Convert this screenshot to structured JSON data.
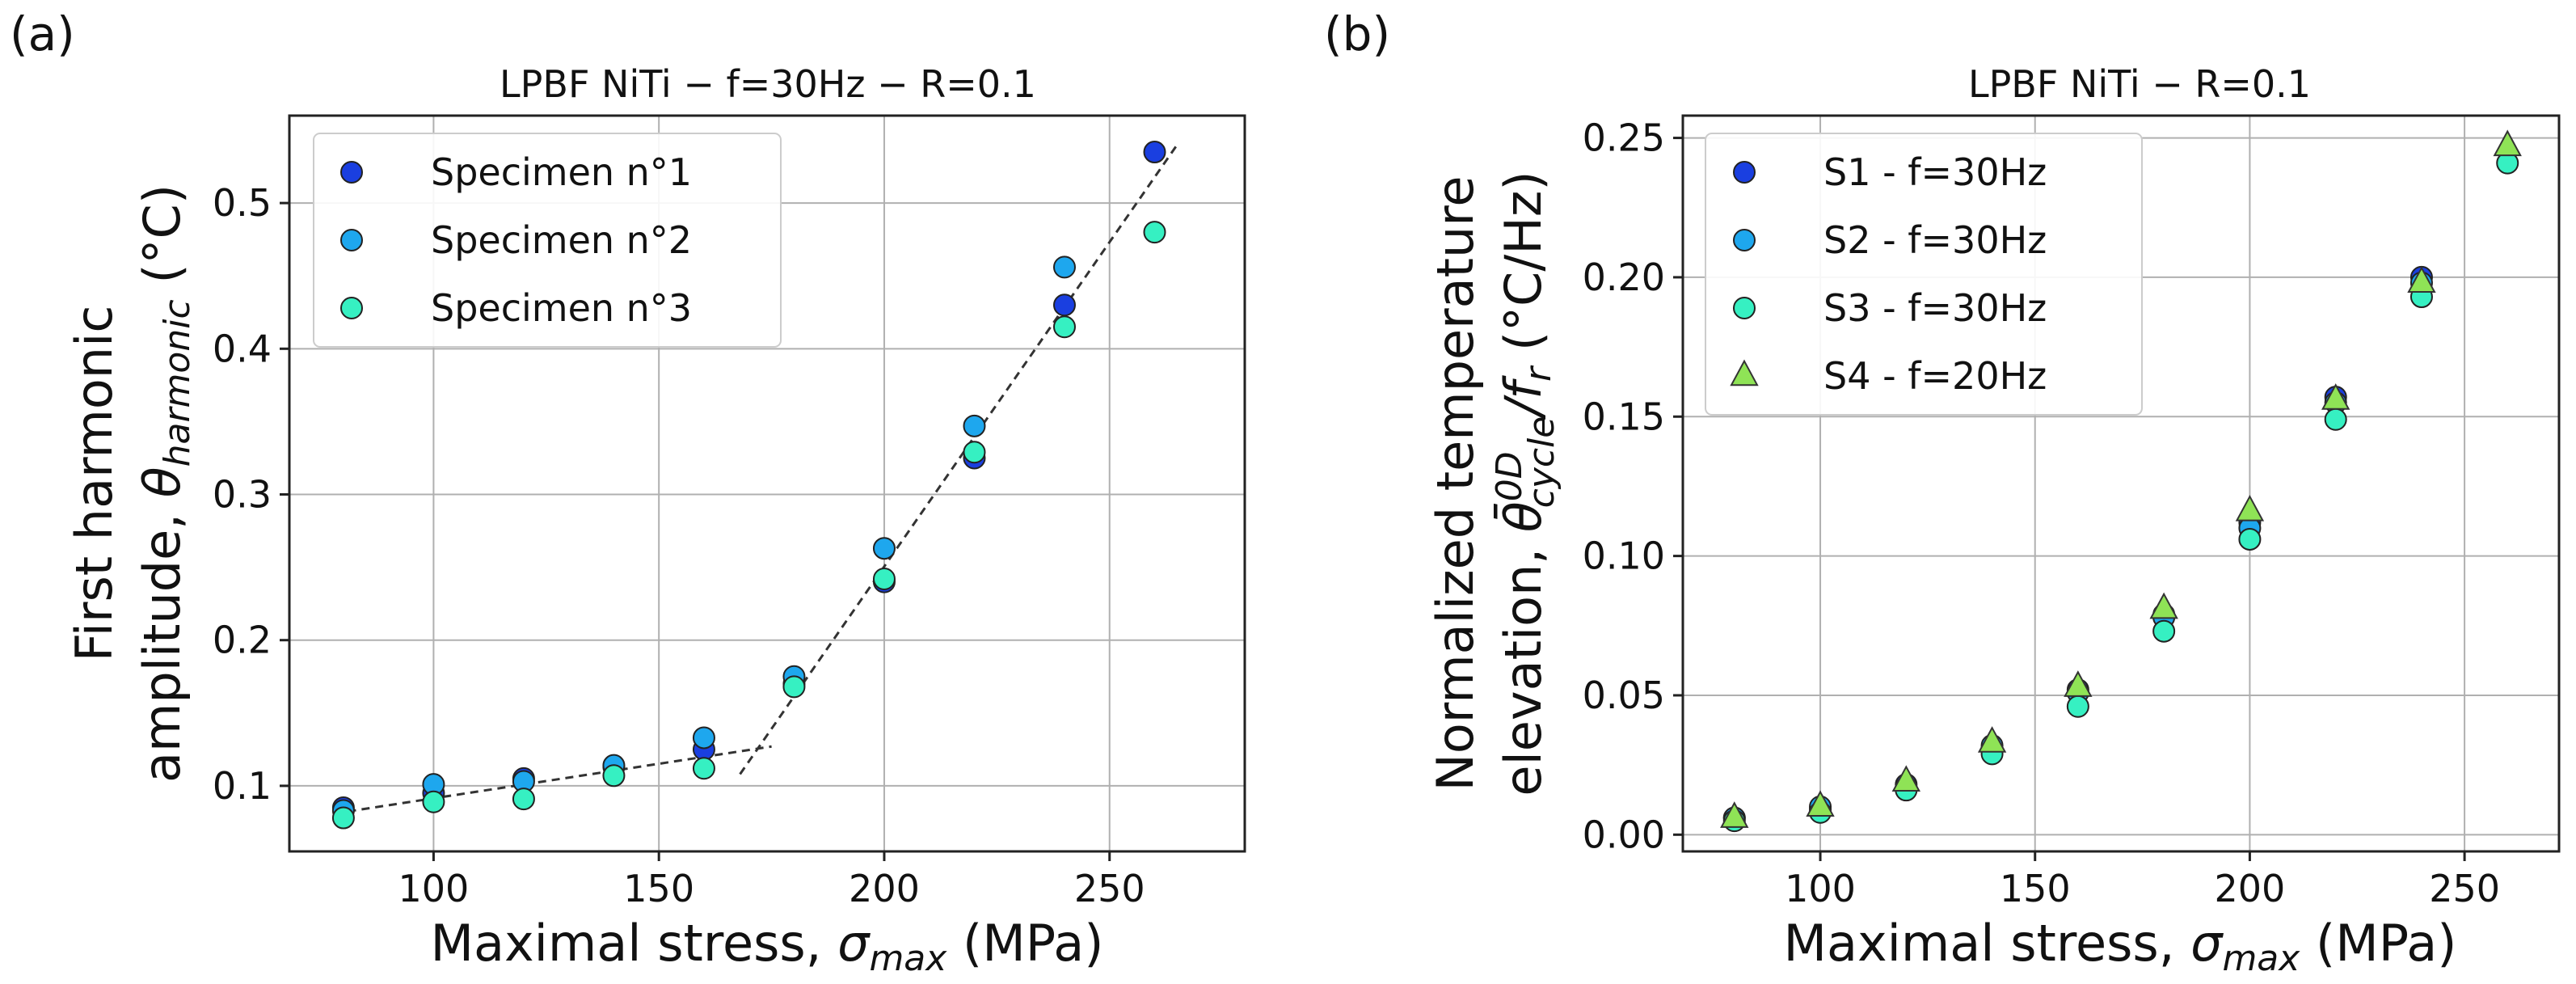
{
  "chart_data": [
    {
      "type": "scatter",
      "panel_label": "(a)",
      "title": "LPBF NiTi − f=30Hz − R=0.1",
      "xlabel": {
        "prefix": "Maximal stress, ",
        "symbol": "σ",
        "sub": "max",
        "suffix": " (MPa)"
      },
      "ylabel": {
        "line1": "First harmonic",
        "line2": {
          "prefix": "amplitude, ",
          "symbol": "θ",
          "sub": "harmonic",
          "suffix": "  (°C)"
        }
      },
      "xlim": [
        68,
        280
      ],
      "ylim": [
        0.055,
        0.56
      ],
      "xticks": [
        100,
        150,
        200,
        250
      ],
      "yticks": [
        0.1,
        0.2,
        0.3,
        0.4,
        0.5
      ],
      "ytick_labels": [
        "0.1",
        "0.2",
        "0.3",
        "0.4",
        "0.5"
      ],
      "grid": true,
      "legend_position": "top-left",
      "series": [
        {
          "name": "Specimen n°1",
          "color": "#1a3fe0",
          "marker": "circle",
          "x": [
            80,
            100,
            120,
            140,
            160,
            180,
            200,
            220,
            240,
            260
          ],
          "y": [
            0.085,
            0.095,
            0.105,
            0.113,
            0.125,
            0.17,
            0.24,
            0.325,
            0.43,
            0.535
          ]
        },
        {
          "name": "Specimen n°2",
          "color": "#1ea7ee",
          "marker": "circle",
          "x": [
            80,
            100,
            120,
            140,
            160,
            180,
            200,
            220,
            240
          ],
          "y": [
            0.083,
            0.101,
            0.103,
            0.114,
            0.133,
            0.175,
            0.263,
            0.347,
            0.456
          ]
        },
        {
          "name": "Specimen n°3",
          "color": "#36f0c2",
          "marker": "circle",
          "x": [
            80,
            100,
            120,
            140,
            160,
            180,
            200,
            220,
            240,
            260
          ],
          "y": [
            0.078,
            0.089,
            0.091,
            0.107,
            0.112,
            0.168,
            0.242,
            0.329,
            0.415,
            0.48
          ]
        }
      ],
      "fit_lines": [
        {
          "x": [
            78,
            175
          ],
          "y": [
            0.081,
            0.127
          ]
        },
        {
          "x": [
            168,
            265
          ],
          "y": [
            0.108,
            0.54
          ]
        }
      ]
    },
    {
      "type": "scatter",
      "panel_label": "(b)",
      "title": "LPBF NiTi − R=0.1",
      "xlabel": {
        "prefix": "Maximal stress, ",
        "symbol": "σ",
        "sub": "max",
        "suffix": " (MPa)"
      },
      "ylabel": {
        "line1": "Normalized temperature",
        "line2": {
          "prefix": "elevation, ",
          "symbol": "θ̄",
          "sup": "0D",
          "sub": "cycle",
          "suffix_mid": "/f",
          "suffix_sub": "r",
          "suffix": "  (°C/Hz)"
        }
      },
      "xlim": [
        68,
        272
      ],
      "ylim": [
        -0.006,
        0.258
      ],
      "xticks": [
        100,
        150,
        200,
        250
      ],
      "yticks": [
        0.0,
        0.05,
        0.1,
        0.15,
        0.2,
        0.25
      ],
      "ytick_labels": [
        "0.00",
        "0.05",
        "0.10",
        "0.15",
        "0.20",
        "0.25"
      ],
      "grid": true,
      "legend_position": "top-left",
      "series": [
        {
          "name": "S1 - f=30Hz",
          "color": "#1a3fe0",
          "marker": "circle",
          "x": [
            80,
            100,
            120,
            140,
            160,
            180,
            200,
            220,
            240
          ],
          "y": [
            0.006,
            0.009,
            0.018,
            0.031,
            0.052,
            0.079,
            0.112,
            0.157,
            0.2
          ]
        },
        {
          "name": "S2 - f=30Hz",
          "color": "#1ea7ee",
          "marker": "circle",
          "x": [
            80,
            100,
            120,
            140,
            160,
            180,
            200,
            220,
            240
          ],
          "y": [
            0.006,
            0.01,
            0.017,
            0.032,
            0.051,
            0.078,
            0.11,
            0.155,
            0.198
          ]
        },
        {
          "name": "S3 - f=30Hz",
          "color": "#36f0c2",
          "marker": "circle",
          "x": [
            80,
            100,
            120,
            140,
            160,
            180,
            200,
            220,
            240,
            260
          ],
          "y": [
            0.005,
            0.008,
            0.016,
            0.029,
            0.046,
            0.073,
            0.106,
            0.149,
            0.193,
            0.241
          ]
        },
        {
          "name": "S4 - f=20Hz",
          "color": "#8fe356",
          "marker": "triangle",
          "x": [
            80,
            100,
            120,
            140,
            160,
            180,
            200,
            220,
            240,
            260
          ],
          "y": [
            0.006,
            0.01,
            0.019,
            0.033,
            0.053,
            0.081,
            0.116,
            0.156,
            0.198,
            0.247
          ]
        }
      ]
    }
  ]
}
